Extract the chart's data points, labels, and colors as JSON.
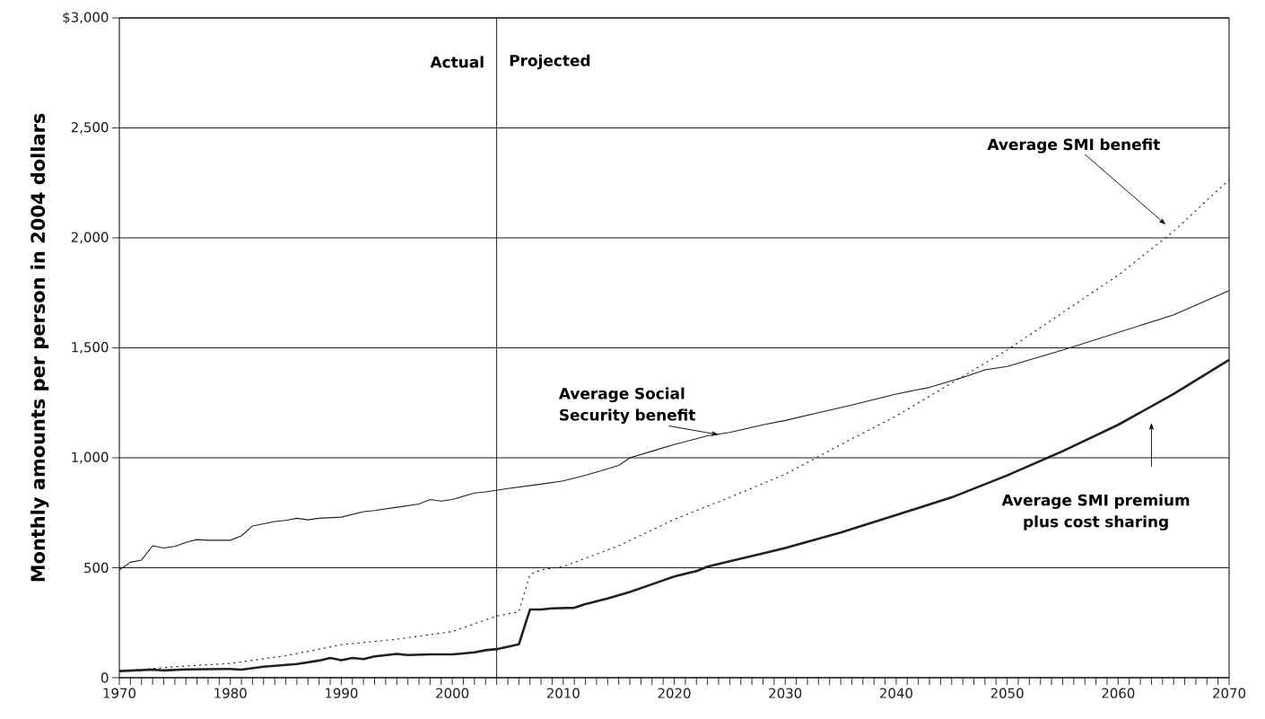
{
  "chart_data": {
    "type": "line",
    "ylabel": "Monthly amounts per person in 2004 dollars",
    "xlim": [
      1970,
      2070
    ],
    "xticks": [
      1970,
      1980,
      1990,
      2000,
      2010,
      2020,
      2030,
      2040,
      2050,
      2060,
      2070
    ],
    "ylim": [
      0,
      3000
    ],
    "yticks": [
      0,
      500,
      {
        "value": 1000,
        "label": "1,000"
      },
      {
        "value": 1500,
        "label": "1,500"
      },
      {
        "value": 2000,
        "label": "2,000"
      },
      {
        "value": 2500,
        "label": "2,500"
      },
      {
        "value": 3000,
        "label": "$3,000"
      }
    ],
    "grid": "y",
    "legend": false,
    "marker": "none",
    "ref_lines": [
      {
        "axis": "x",
        "value": 2004,
        "color": "#231f20"
      }
    ],
    "annotations": [
      "Actual",
      "Projected"
    ],
    "series": [
      {
        "name": "Average Social Security benefit",
        "color": "#231f20",
        "line_style": "solid",
        "x": [
          1970,
          1971,
          1972,
          1973,
          1974,
          1975,
          1976,
          1977,
          1978,
          1980,
          1981,
          1982,
          1984,
          1985,
          1986,
          1987,
          1988,
          1990,
          1992,
          1993,
          1995,
          1997,
          1998,
          1999,
          2000,
          2002,
          2003,
          2005,
          2008,
          2010,
          2012,
          2014,
          2015,
          2016,
          2018,
          2020,
          2023,
          2025,
          2028,
          2030,
          2033,
          2036,
          2040,
          2043,
          2046,
          2048,
          2050,
          2055,
          2060,
          2065,
          2070
        ],
        "values": [
          490,
          525,
          535,
          600,
          590,
          597,
          615,
          628,
          625,
          625,
          645,
          690,
          710,
          715,
          725,
          718,
          725,
          730,
          755,
          760,
          775,
          790,
          810,
          803,
          810,
          840,
          845,
          860,
          880,
          895,
          920,
          950,
          965,
          1000,
          1030,
          1060,
          1100,
          1115,
          1150,
          1170,
          1205,
          1240,
          1290,
          1320,
          1365,
          1400,
          1415,
          1490,
          1570,
          1650,
          1760
        ]
      },
      {
        "name": "Average SMI benefit",
        "color": "#231f20",
        "line_style": "dotted",
        "x": [
          1970,
          1975,
          1980,
          1985,
          1990,
          1995,
          2000,
          2004,
          2006,
          2007,
          2008,
          2010,
          2015,
          2020,
          2025,
          2030,
          2035,
          2040,
          2045,
          2050,
          2055,
          2060,
          2065,
          2070
        ],
        "values": [
          30,
          50,
          65,
          100,
          150,
          175,
          210,
          280,
          300,
          470,
          490,
          505,
          600,
          720,
          820,
          925,
          1060,
          1190,
          1340,
          1490,
          1660,
          1830,
          2030,
          2265
        ]
      },
      {
        "name": "Average SMI premium plus cost sharing",
        "color": "#231f20",
        "line_style": "solid",
        "x": [
          1970,
          1973,
          1974,
          1976,
          1980,
          1981,
          1983,
          1986,
          1988,
          1989,
          1990,
          1991,
          1992,
          1993,
          1995,
          1996,
          1998,
          2000,
          2002,
          2003,
          2004,
          2006,
          2007,
          2008,
          2009,
          2011,
          2012,
          2014,
          2016,
          2018,
          2020,
          2022,
          2023,
          2025,
          2028,
          2030,
          2035,
          2040,
          2045,
          2050,
          2055,
          2060,
          2065,
          2070
        ],
        "values": [
          30,
          37,
          33,
          38,
          40,
          37,
          50,
          62,
          78,
          90,
          80,
          90,
          85,
          97,
          108,
          103,
          106,
          106,
          115,
          125,
          130,
          152,
          310,
          310,
          315,
          318,
          335,
          360,
          390,
          425,
          460,
          485,
          505,
          530,
          565,
          590,
          660,
          740,
          820,
          920,
          1030,
          1150,
          1290,
          1445
        ]
      }
    ]
  }
}
